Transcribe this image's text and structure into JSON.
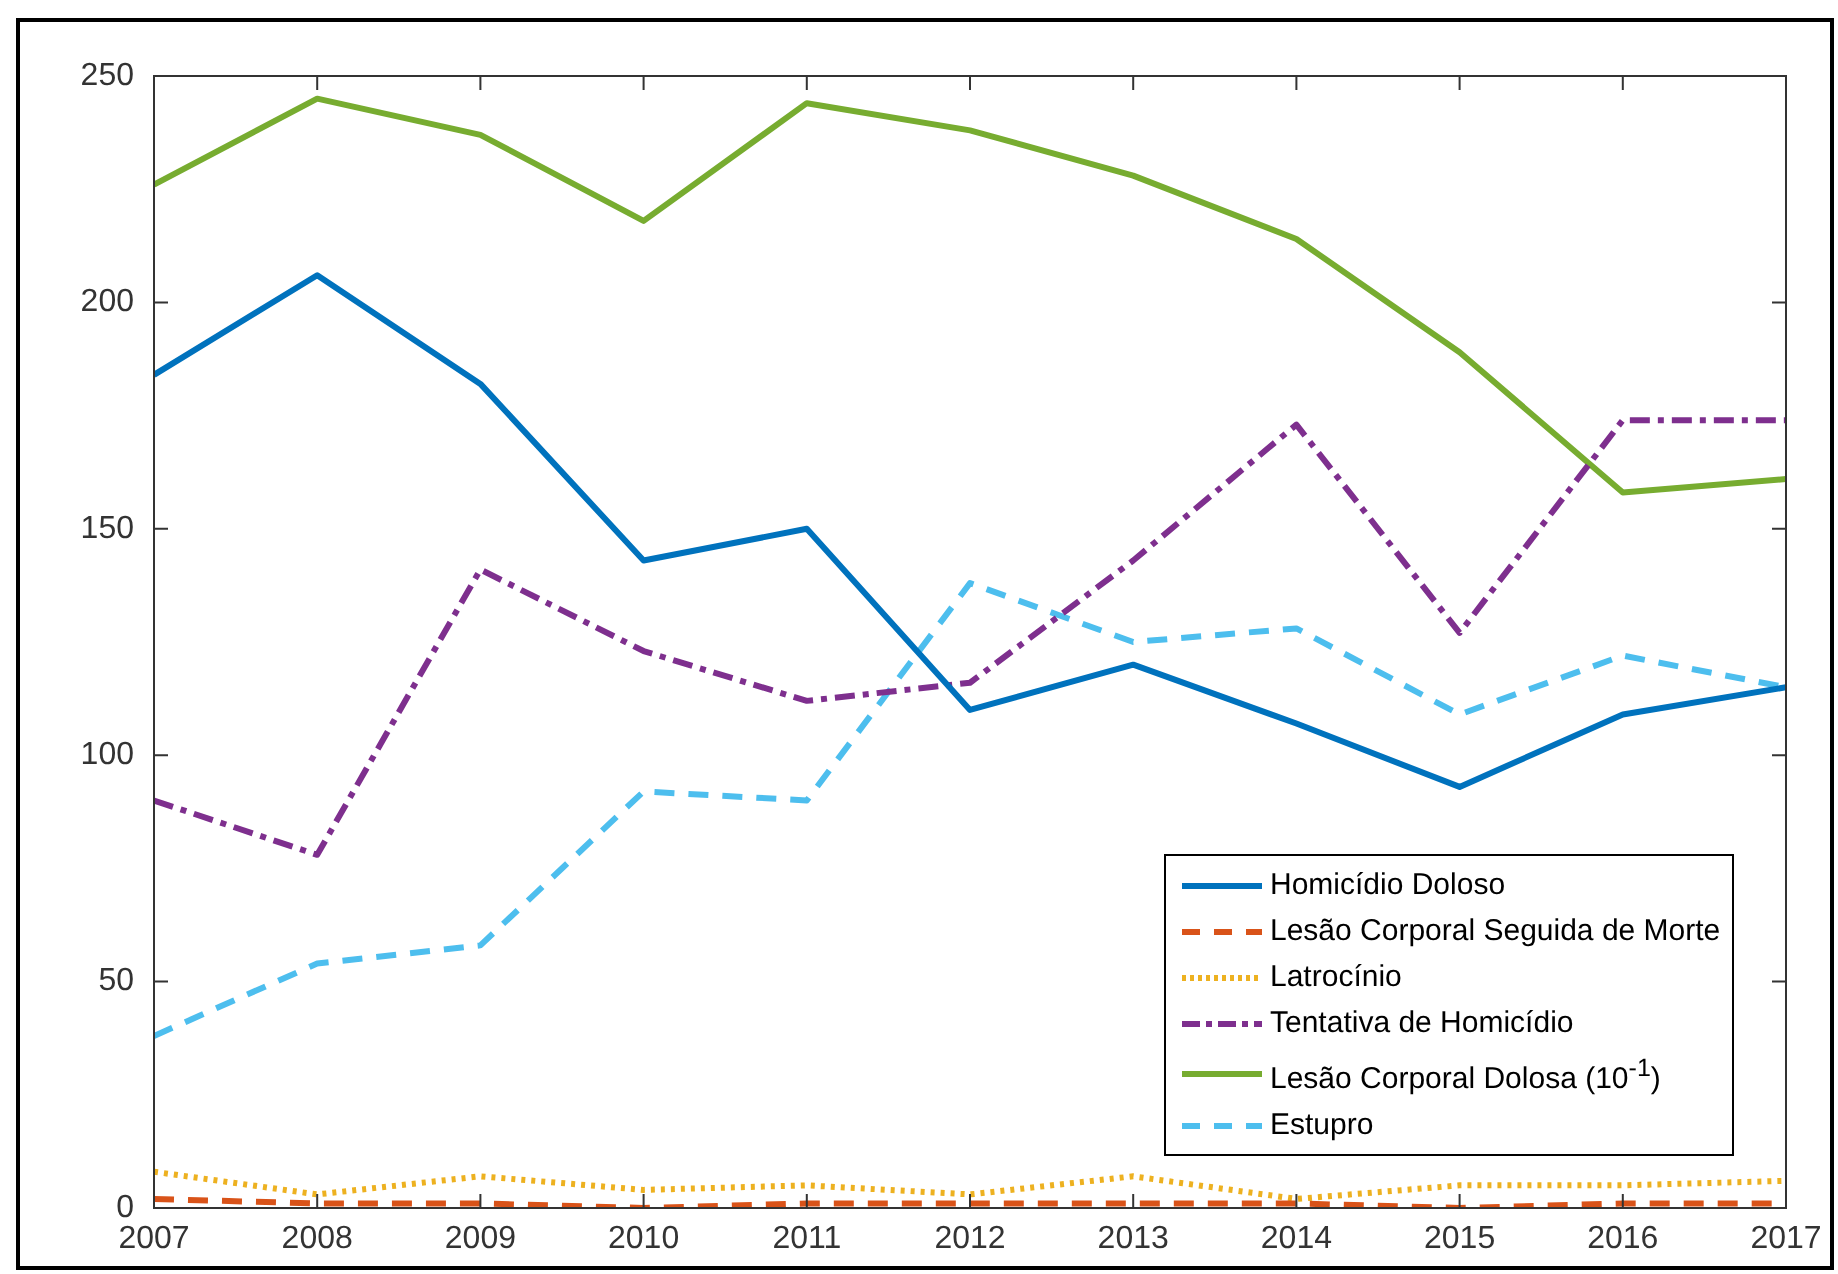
{
  "chart_data": {
    "type": "line",
    "x": [
      2007,
      2008,
      2009,
      2010,
      2011,
      2012,
      2013,
      2014,
      2015,
      2016,
      2017
    ],
    "xlim": [
      2007,
      2017
    ],
    "xticks": [
      2007,
      2008,
      2009,
      2010,
      2011,
      2012,
      2013,
      2014,
      2015,
      2016,
      2017
    ],
    "ylim": [
      0,
      250
    ],
    "yticks": [
      0,
      50,
      100,
      150,
      200,
      250
    ],
    "grid": false,
    "legend": "bottom right",
    "series": [
      {
        "name": "Homicídio Doloso",
        "color": "#0072bd",
        "line_style": "solid",
        "values": [
          184,
          206,
          182,
          143,
          150,
          110,
          120,
          107,
          93,
          109,
          115
        ]
      },
      {
        "name": "Lesão Corporal Seguida de Morte",
        "color": "#d95319",
        "line_style": "dashed",
        "values": [
          2,
          1,
          1,
          0,
          1,
          1,
          1,
          1,
          0,
          1,
          1
        ]
      },
      {
        "name": "Latrocínio",
        "color": "#edb120",
        "line_style": "dotted",
        "values": [
          8,
          3,
          7,
          4,
          5,
          3,
          7,
          2,
          5,
          5,
          6
        ]
      },
      {
        "name": "Tentativa de Homicídio",
        "color": "#7e2f8e",
        "line_style": "dashdot",
        "values": [
          90,
          78,
          141,
          123,
          112,
          116,
          143,
          173,
          127,
          174,
          174
        ]
      },
      {
        "name": "Lesão Corporal Dolosa (10$^{-1}$)",
        "color": "#77ac30",
        "line_style": "solid",
        "values": [
          226,
          245,
          237,
          218,
          244,
          238,
          228,
          214,
          189,
          158,
          161
        ]
      },
      {
        "name": "Estupro",
        "color": "#4dbeee",
        "line_style": "dashed",
        "values": [
          38,
          54,
          58,
          92,
          90,
          138,
          125,
          128,
          109,
          122,
          115
        ]
      }
    ]
  }
}
